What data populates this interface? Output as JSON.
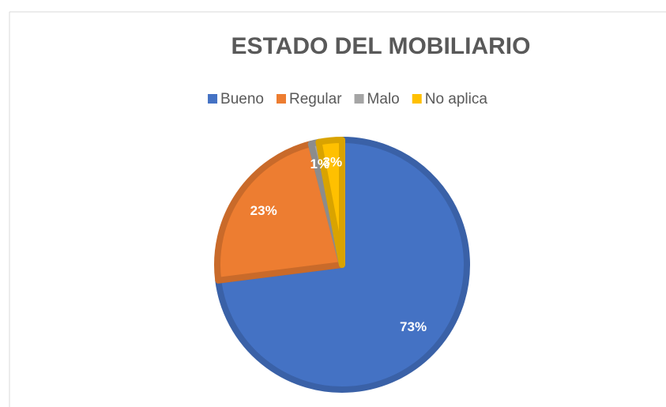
{
  "chart_data": {
    "type": "pie",
    "title": "ESTADO DEL MOBILIARIO",
    "categories": [
      "Bueno",
      "Regular",
      "Malo",
      "No aplica"
    ],
    "values": [
      73,
      23,
      1,
      3
    ],
    "value_labels": [
      "73%",
      "23%",
      "1%",
      "3%"
    ],
    "colors": [
      "#4472c4",
      "#ed7d31",
      "#a5a5a5",
      "#ffc000"
    ],
    "legend": "top"
  }
}
